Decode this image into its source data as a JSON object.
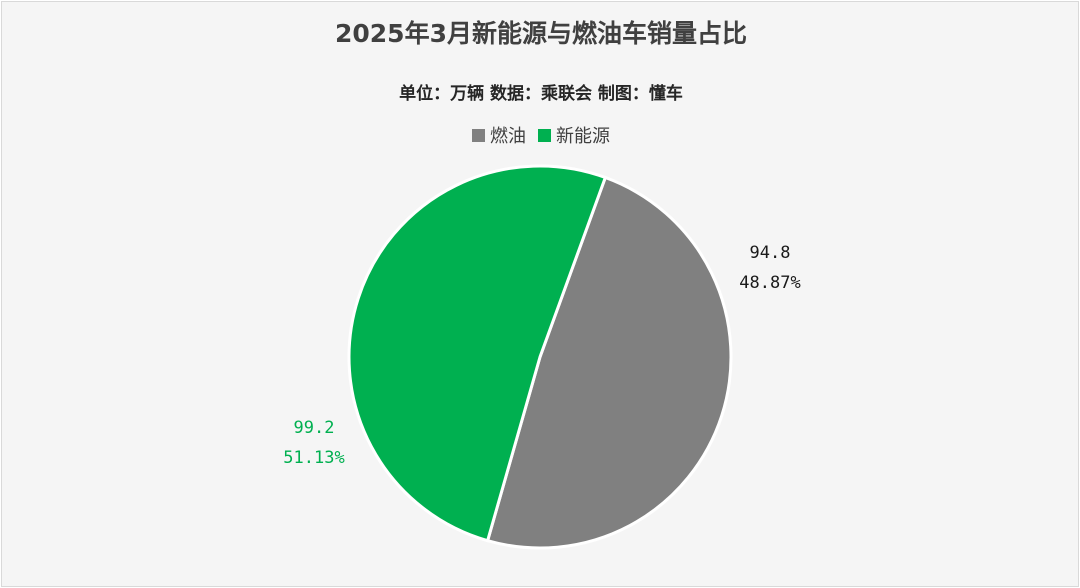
{
  "chart_data": {
    "type": "pie",
    "title": "2025年3月新能源与燃油车销量占比",
    "subtitle": "单位：万辆   数据：乘联会   制图：懂车",
    "legend_placement": "top",
    "slices": [
      {
        "name": "燃油",
        "value": 94.8,
        "percent": "48.87%",
        "value_label": "94.8",
        "color": "#808080",
        "label_color": "#1a1a1a"
      },
      {
        "name": "新能源",
        "value": 99.2,
        "percent": "51.13%",
        "value_label": "99.2",
        "color": "#00b050",
        "label_color": "#00b050"
      }
    ]
  }
}
